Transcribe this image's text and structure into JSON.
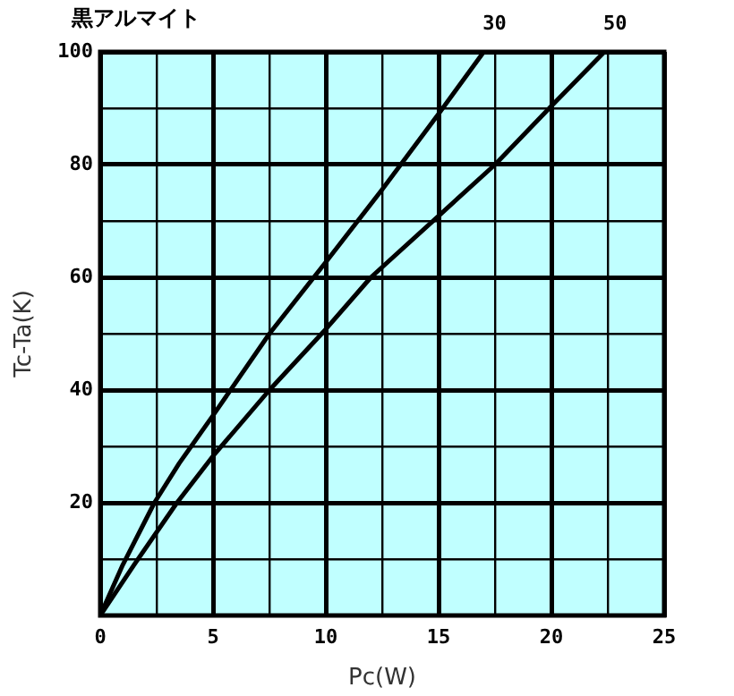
{
  "chart_data": {
    "type": "line",
    "title": "黒アルマイト",
    "xlabel": "Pc(W)",
    "ylabel": "Tc-Ta(K)",
    "xlim": [
      0,
      25
    ],
    "ylim": [
      0,
      100
    ],
    "xticks": [
      0,
      {
        "value": 2.5,
        "label": null
      },
      5,
      {
        "value": 7.5,
        "label": null
      },
      10,
      {
        "value": 12.5,
        "label": null
      },
      15,
      {
        "value": 17.5,
        "label": null
      },
      20,
      {
        "value": 22.5,
        "label": null
      },
      25
    ],
    "yticks": [
      {
        "value": 0,
        "label": null
      },
      {
        "value": 10,
        "label": null
      },
      20,
      {
        "value": 30,
        "label": null
      },
      40,
      {
        "value": 50,
        "label": null
      },
      60,
      {
        "value": 70,
        "label": null
      },
      80,
      {
        "value": 90,
        "label": null
      },
      100
    ],
    "grid": true,
    "legend": false,
    "marker": "none",
    "line_style": "solid",
    "series": [
      {
        "name": "30",
        "color": "#000000",
        "x": [
          0,
          1,
          2.4,
          3.5,
          5,
          7.5,
          10,
          12.5,
          15,
          17
        ],
        "values": [
          0,
          9,
          20,
          27,
          35.5,
          50,
          62.7,
          75.6,
          89,
          100
        ]
      },
      {
        "name": "50",
        "color": "#000000",
        "x": [
          0,
          1.5,
          3.4,
          5,
          7.5,
          10,
          12,
          15,
          17.5,
          20,
          22.35
        ],
        "values": [
          0,
          9,
          20,
          28.3,
          40,
          50.8,
          60,
          70.9,
          80,
          90.4,
          100
        ]
      }
    ]
  }
}
